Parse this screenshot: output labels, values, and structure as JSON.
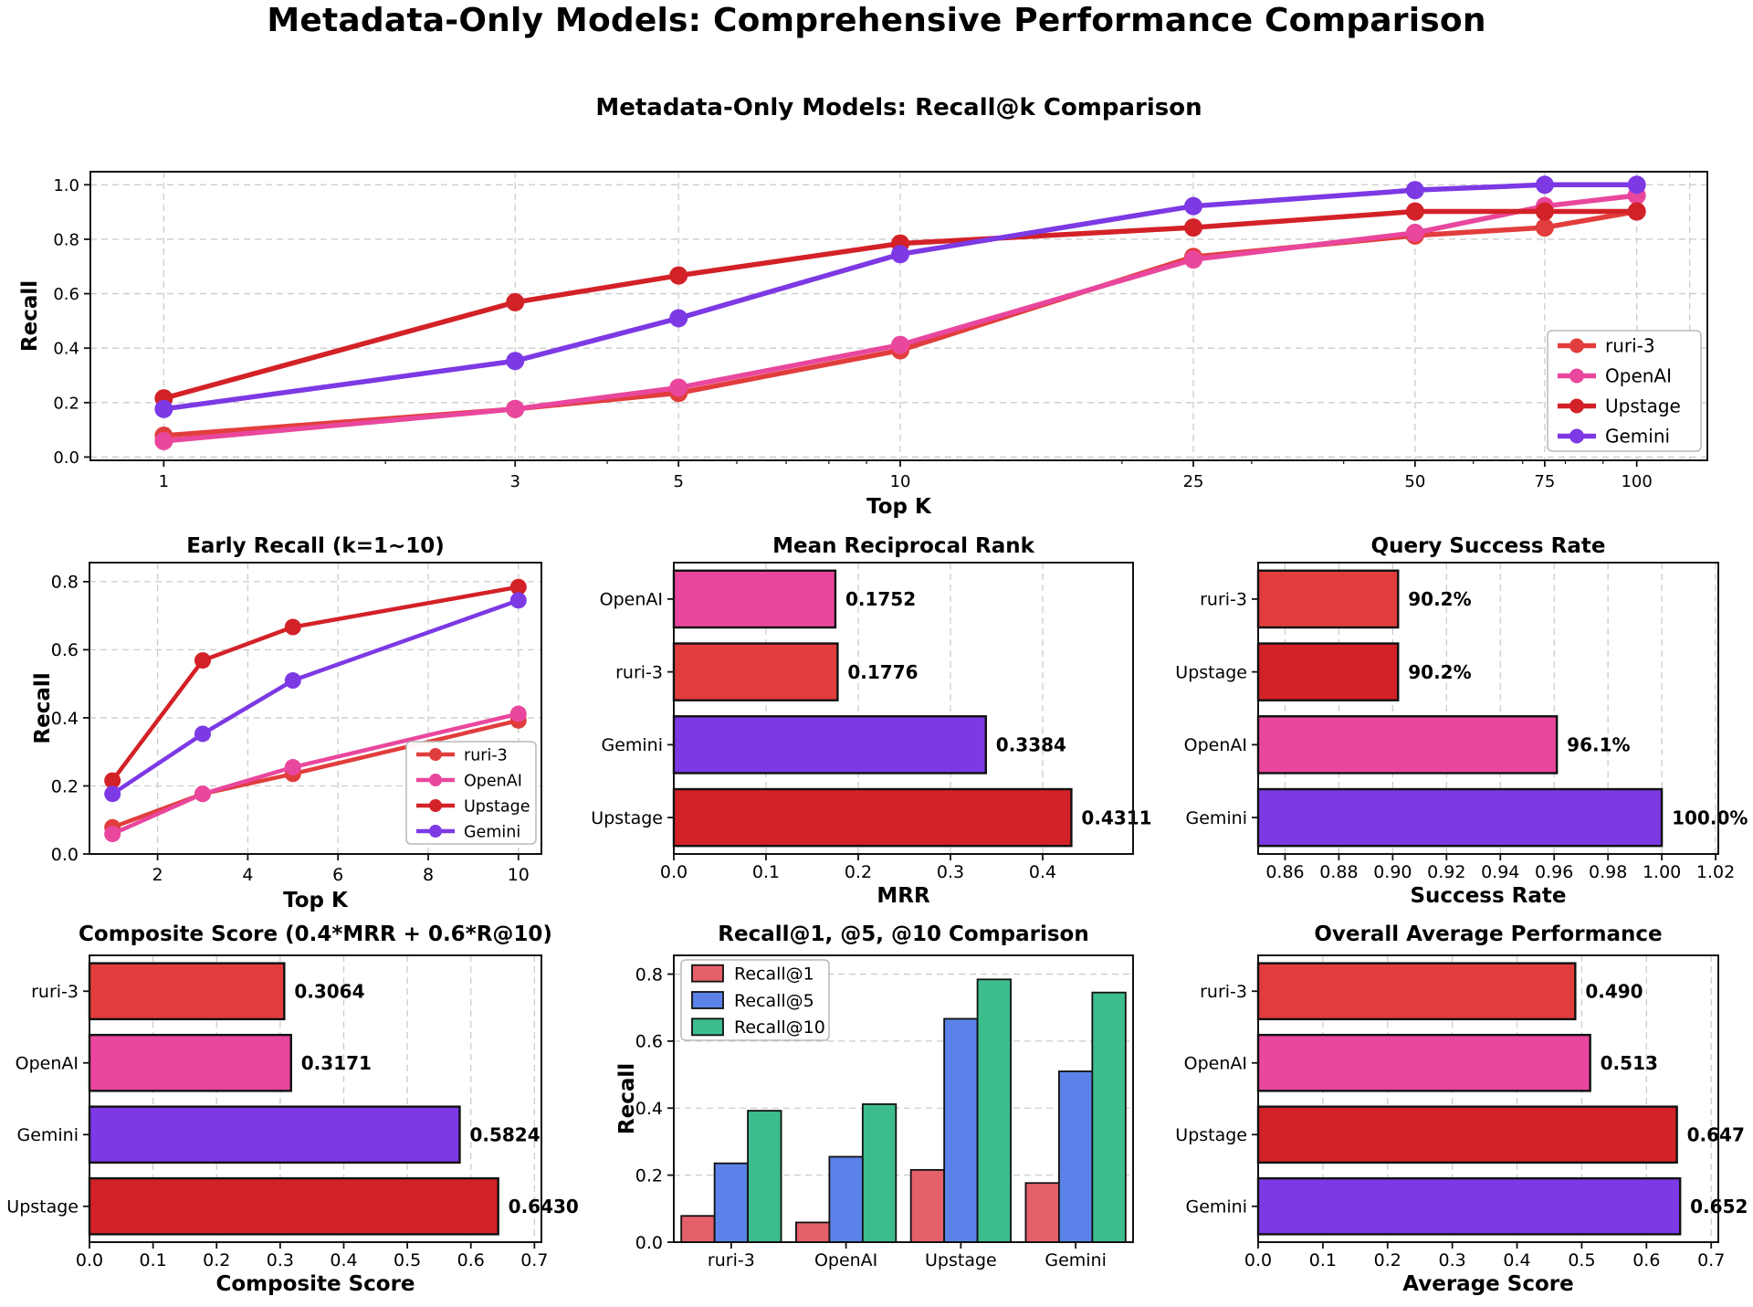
{
  "figure": {
    "suptitle": "Metadata-Only Models: Comprehensive Performance Comparison"
  },
  "palette": {
    "ruri-3": "#e23d3d",
    "OpenAI": "#e9479d",
    "Upstage": "#d32128",
    "Gemini": "#7c39e4",
    "Recall@1": "#e4606a",
    "Recall@5": "#5b82e8",
    "Recall@10": "#3dbd8d",
    "grid": "#cccccc",
    "spine": "#111111"
  },
  "chart_data": [
    {
      "id": "recall-at-k",
      "type": "line",
      "title": "Metadata-Only Models: Recall@k Comparison",
      "xlabel": "Top K",
      "ylabel": "Recall",
      "xscale": "log",
      "grid": true,
      "x": [
        1,
        3,
        5,
        10,
        25,
        50,
        75,
        100
      ],
      "xticks": [
        1,
        3,
        5,
        10,
        25,
        50,
        75,
        100
      ],
      "xtick_dec": 0,
      "yticks": [
        0.0,
        0.2,
        0.4,
        0.6,
        0.8,
        1.0
      ],
      "ytick_dec": 1,
      "xlim": [
        0.795,
        124.7
      ],
      "ylim": [
        -0.012,
        1.048
      ],
      "minor_xticks": [
        2,
        4,
        6,
        7,
        8,
        9,
        20,
        30,
        40,
        60,
        70,
        80,
        90
      ],
      "extra_gridlines_x": [
        118
      ],
      "series": [
        {
          "name": "ruri-3",
          "values": [
            0.0784,
            0.1765,
            0.2353,
            0.3922,
            0.7353,
            0.8137,
            0.8431,
            0.902
          ]
        },
        {
          "name": "OpenAI",
          "values": [
            0.0588,
            0.1765,
            0.2549,
            0.4118,
            0.7255,
            0.8235,
            0.9216,
            0.9608
          ]
        },
        {
          "name": "Upstage",
          "values": [
            0.2157,
            0.5686,
            0.6667,
            0.7843,
            0.8431,
            0.902,
            0.902,
            0.902
          ]
        },
        {
          "name": "Gemini",
          "values": [
            0.1765,
            0.3529,
            0.5098,
            0.7451,
            0.9216,
            0.9804,
            1.0,
            1.0
          ]
        }
      ],
      "legend": {
        "position": "lower-right",
        "labels": [
          "ruri-3",
          "OpenAI",
          "Upstage",
          "Gemini"
        ]
      }
    },
    {
      "id": "early-recall",
      "type": "line",
      "title": "Early Recall (k=1~10)",
      "xlabel": "Top K",
      "ylabel": "Recall",
      "xscale": "linear",
      "grid": true,
      "x": [
        1,
        3,
        5,
        10
      ],
      "xticks": [
        2,
        4,
        6,
        8,
        10
      ],
      "xtick_dec": 0,
      "yticks": [
        0.0,
        0.2,
        0.4,
        0.6,
        0.8
      ],
      "ytick_dec": 1,
      "xlim": [
        0.49,
        10.51
      ],
      "ylim": [
        0,
        0.856
      ],
      "series": [
        {
          "name": "ruri-3",
          "values": [
            0.0784,
            0.1765,
            0.2353,
            0.3922
          ]
        },
        {
          "name": "OpenAI",
          "values": [
            0.0588,
            0.1765,
            0.2549,
            0.4118
          ]
        },
        {
          "name": "Upstage",
          "values": [
            0.2157,
            0.5686,
            0.6667,
            0.7843
          ]
        },
        {
          "name": "Gemini",
          "values": [
            0.1765,
            0.3529,
            0.5098,
            0.7451
          ]
        }
      ],
      "legend": {
        "position": "lower-right",
        "labels": [
          "ruri-3",
          "OpenAI",
          "Upstage",
          "Gemini"
        ]
      }
    },
    {
      "id": "mrr",
      "type": "barh",
      "title": "Mean Reciprocal Rank",
      "xlabel": "MRR",
      "grid": true,
      "categories": [
        "OpenAI",
        "ruri-3",
        "Gemini",
        "Upstage"
      ],
      "values": [
        0.1752,
        0.1776,
        0.3384,
        0.4311
      ],
      "labels": [
        "0.1752",
        "0.1776",
        "0.3384",
        "0.4311"
      ],
      "xlim": [
        0,
        0.498
      ],
      "xticks": [
        0.0,
        0.1,
        0.2,
        0.3,
        0.4
      ],
      "xtick_dec": 1
    },
    {
      "id": "success-rate",
      "type": "barh",
      "title": "Query Success Rate",
      "xlabel": "Success Rate",
      "grid": true,
      "categories": [
        "ruri-3",
        "Upstage",
        "OpenAI",
        "Gemini"
      ],
      "values": [
        0.902,
        0.902,
        0.961,
        1.0
      ],
      "labels": [
        "90.2%",
        "90.2%",
        "96.1%",
        "100.0%"
      ],
      "xlim": [
        0.85,
        1.021
      ],
      "xticks": [
        0.86,
        0.88,
        0.9,
        0.92,
        0.94,
        0.96,
        0.98,
        1.0,
        1.02
      ],
      "xtick_dec": 2
    },
    {
      "id": "composite",
      "type": "barh",
      "title": "Composite Score (0.4*MRR + 0.6*R@10)",
      "xlabel": "Composite Score",
      "grid": true,
      "categories": [
        "ruri-3",
        "OpenAI",
        "Gemini",
        "Upstage"
      ],
      "values": [
        0.3064,
        0.3171,
        0.5824,
        0.643
      ],
      "labels": [
        "0.3064",
        "0.3171",
        "0.5824",
        "0.6430"
      ],
      "xlim": [
        0,
        0.711
      ],
      "xticks": [
        0.0,
        0.1,
        0.2,
        0.3,
        0.4,
        0.5,
        0.6,
        0.7
      ],
      "xtick_dec": 1
    },
    {
      "id": "recall-comparison",
      "type": "bar",
      "title": "Recall@1, @5, @10 Comparison",
      "ylabel": "Recall",
      "grid": true,
      "categories": [
        "ruri-3",
        "OpenAI",
        "Upstage",
        "Gemini"
      ],
      "yticks": [
        0.0,
        0.2,
        0.4,
        0.6,
        0.8
      ],
      "ytick_dec": 1,
      "ylim": [
        0,
        0.856
      ],
      "series": [
        {
          "name": "Recall@1",
          "values": [
            0.0784,
            0.0588,
            0.2157,
            0.1765
          ]
        },
        {
          "name": "Recall@5",
          "values": [
            0.2353,
            0.2549,
            0.6667,
            0.5098
          ]
        },
        {
          "name": "Recall@10",
          "values": [
            0.3922,
            0.4118,
            0.7843,
            0.7451
          ]
        }
      ],
      "legend": {
        "position": "upper-left",
        "labels": [
          "Recall@1",
          "Recall@5",
          "Recall@10"
        ]
      }
    },
    {
      "id": "overall",
      "type": "barh",
      "title": "Overall Average Performance",
      "xlabel": "Average Score",
      "grid": true,
      "categories": [
        "ruri-3",
        "OpenAI",
        "Upstage",
        "Gemini"
      ],
      "values": [
        0.49,
        0.513,
        0.647,
        0.652
      ],
      "labels": [
        "0.490",
        "0.513",
        "0.647",
        "0.652"
      ],
      "xlim": [
        0,
        0.711
      ],
      "xticks": [
        0.0,
        0.1,
        0.2,
        0.3,
        0.4,
        0.5,
        0.6,
        0.7
      ],
      "xtick_dec": 1
    }
  ]
}
